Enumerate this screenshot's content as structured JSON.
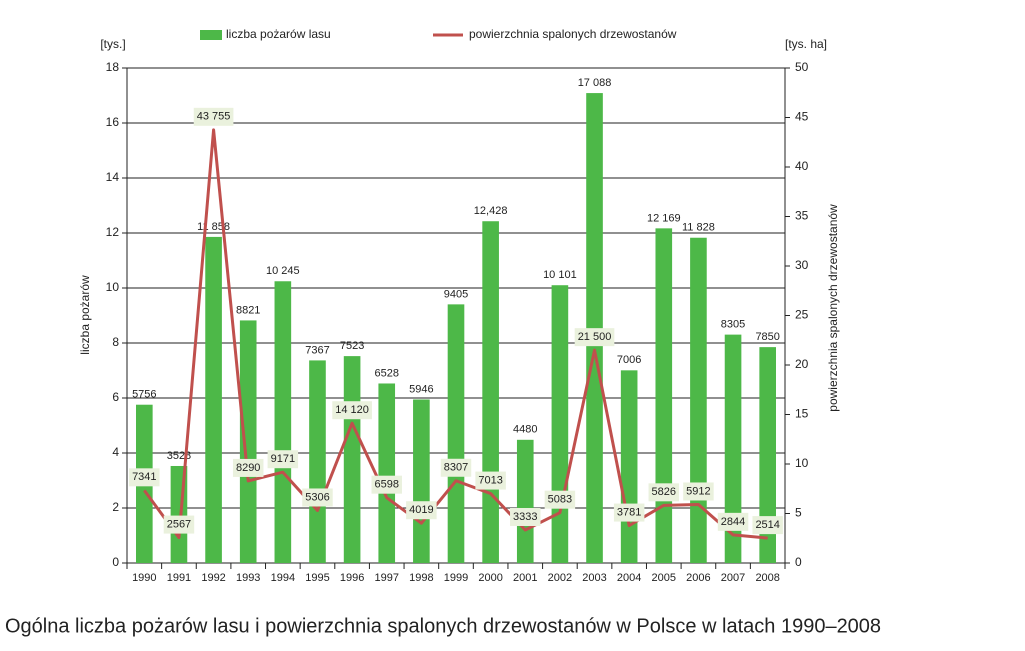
{
  "chart_data": {
    "type": "bar",
    "title": "Ogólna liczba pożarów lasu i powierzchnia spalonych drzewostanów w Polsce w latach 1990–2008",
    "y_unit": "[tys.]",
    "y2_unit": "[tys. ha]",
    "ylabel": "liczba pożarów",
    "y2label": "powierzchnia spalonych  drzewostanów",
    "categories": [
      "1990",
      "1991",
      "1992",
      "1993",
      "1994",
      "1995",
      "1996",
      "1997",
      "1998",
      "1999",
      "2000",
      "2001",
      "2002",
      "2003",
      "2004",
      "2005",
      "2006",
      "2007",
      "2008"
    ],
    "series": [
      {
        "name": "liczba pożarów lasu",
        "type": "bar",
        "color": "#4db848",
        "values": [
          5.756,
          3.528,
          11.858,
          8.821,
          10.245,
          7.367,
          7.523,
          6.528,
          5.946,
          9.405,
          12.428,
          4.48,
          10.101,
          17.088,
          7.006,
          12.169,
          11.828,
          8.305,
          7.85
        ],
        "value_labels": [
          "5756",
          "3528",
          "11 858",
          "8821",
          "10 245",
          "7367",
          "7523",
          "6528",
          "5946",
          "9405",
          "12,428",
          "4480",
          "10 101",
          "17 088",
          "7006",
          "12 169",
          "11 828",
          "8305",
          "7850"
        ]
      },
      {
        "name": "powierzchnia spalonych drzewostanów",
        "type": "line",
        "axis": "y2",
        "color": "#c0504d",
        "values": [
          7.341,
          2.567,
          43.755,
          8.29,
          9.171,
          5.306,
          14.12,
          6.598,
          4.019,
          8.307,
          7.013,
          3.333,
          5.083,
          21.5,
          3.781,
          5.826,
          5.912,
          2.844,
          2.514
        ],
        "value_labels": [
          "7341",
          "2567",
          "43 755",
          "8290",
          "9171",
          "5306",
          "14 120",
          "6598",
          "4019",
          "8307",
          "7013",
          "3333",
          "5083",
          "21 500",
          "3781",
          "5826",
          "5912",
          "2844",
          "2514"
        ]
      }
    ],
    "ylim": [
      0,
      18
    ],
    "yticks": [
      0,
      2,
      4,
      6,
      8,
      10,
      12,
      14,
      16,
      18
    ],
    "y2lim": [
      0,
      50
    ],
    "y2ticks": [
      0,
      5,
      10,
      15,
      20,
      25,
      30,
      35,
      40,
      45,
      50
    ],
    "grid": true
  }
}
